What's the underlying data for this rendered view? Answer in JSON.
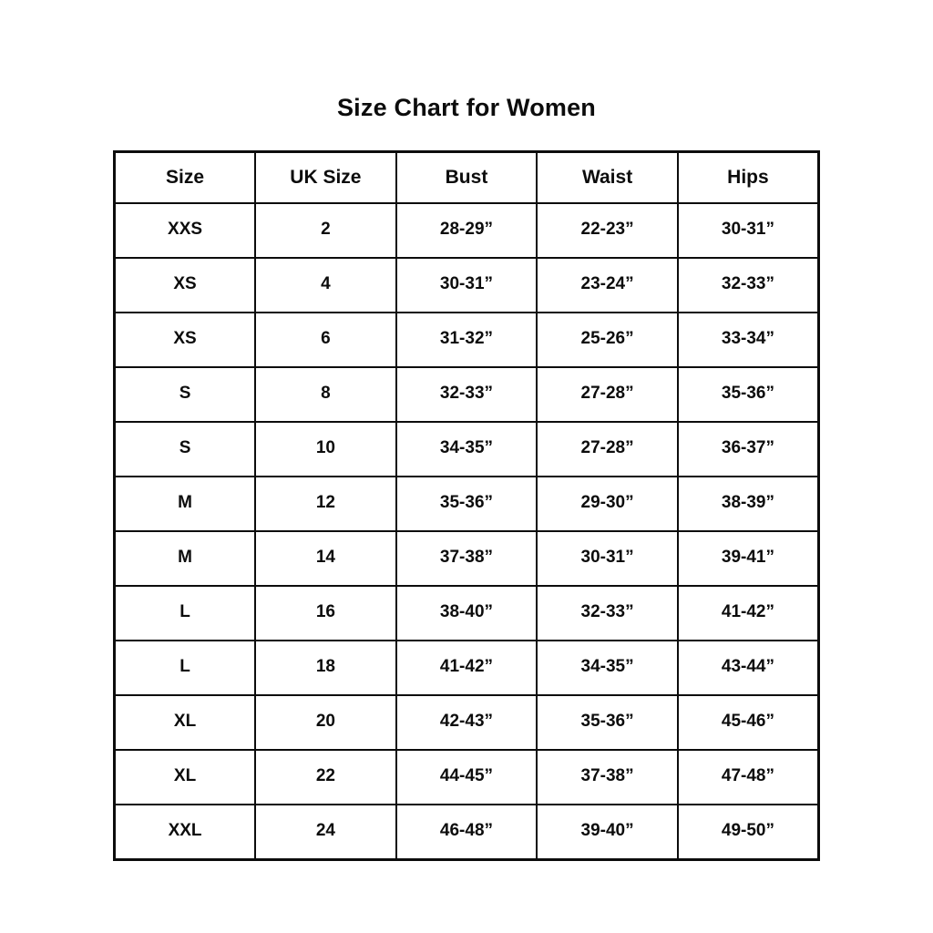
{
  "chart_data": {
    "type": "table",
    "title": "Size Chart for Women",
    "columns": [
      "Size",
      "UK Size",
      "Bust",
      "Waist",
      "Hips"
    ],
    "rows": [
      [
        "XXS",
        "2",
        "28-29”",
        "22-23”",
        "30-31”"
      ],
      [
        "XS",
        "4",
        "30-31”",
        "23-24”",
        "32-33”"
      ],
      [
        "XS",
        "6",
        "31-32”",
        "25-26”",
        "33-34”"
      ],
      [
        "S",
        "8",
        "32-33”",
        "27-28”",
        "35-36”"
      ],
      [
        "S",
        "10",
        "34-35”",
        "27-28”",
        "36-37”"
      ],
      [
        "M",
        "12",
        "35-36”",
        "29-30”",
        "38-39”"
      ],
      [
        "M",
        "14",
        "37-38”",
        "30-31”",
        "39-41”"
      ],
      [
        "L",
        "16",
        "38-40”",
        "32-33”",
        "41-42”"
      ],
      [
        "L",
        "18",
        "41-42”",
        "34-35”",
        "43-44”"
      ],
      [
        "XL",
        "20",
        "42-43”",
        "35-36”",
        "45-46”"
      ],
      [
        "XL",
        "22",
        "44-45”",
        "37-38”",
        "47-48”"
      ],
      [
        "XXL",
        "24",
        "46-48”",
        "39-40”",
        "49-50”"
      ]
    ],
    "layout": {
      "grid": "on",
      "border_color": "#0c0c0c",
      "background_color": "#ffffff",
      "text_color": "#0c0c0c"
    }
  }
}
